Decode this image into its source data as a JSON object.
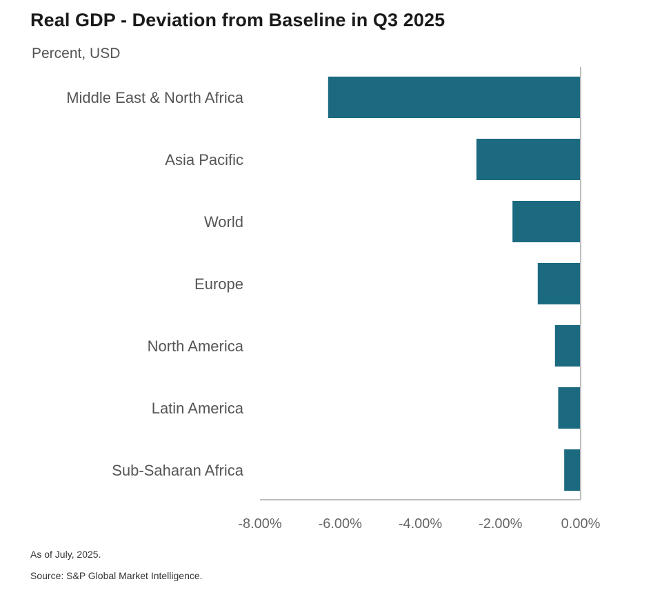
{
  "header": {
    "title": "Real GDP - Deviation from Baseline in Q3 2025",
    "subtitle": "Percent, USD"
  },
  "footer": {
    "note": "As of July, 2025.",
    "source": "Source: S&P Global Market Intelligence."
  },
  "colors": {
    "bar": "#1b6a80",
    "axis": "#bdbdbd",
    "label": "#555555"
  },
  "chart_data": {
    "type": "bar",
    "orientation": "horizontal",
    "title": "Real GDP - Deviation from Baseline in Q3 2025",
    "subtitle": "Percent, USD",
    "categories": [
      "Middle East & North Africa",
      "Asia Pacific",
      "World",
      "Europe",
      "North America",
      "Latin America",
      "Sub-Saharan Africa"
    ],
    "values": [
      -6.3,
      -2.6,
      -1.7,
      -1.07,
      -0.64,
      -0.56,
      -0.41
    ],
    "xlim": [
      -8,
      0
    ],
    "xticks": [
      -8,
      -6,
      -4,
      -2,
      0
    ],
    "xtick_labels": [
      "-8.00%",
      "-6.00%",
      "-4.00%",
      "-2.00%",
      "0.00%"
    ],
    "grid": false,
    "legend": "none"
  }
}
